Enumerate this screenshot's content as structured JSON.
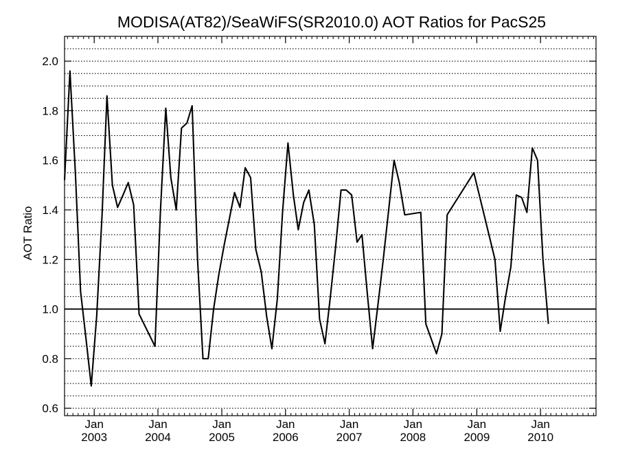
{
  "chart_data": {
    "type": "line",
    "title": "MODISA(AT82)/SeaWiFS(SR2010.0)  AOT Ratios for PacS25",
    "xlabel": "",
    "ylabel": "AOT Ratio",
    "xlim": [
      "2002-07-15",
      "2010-11-15"
    ],
    "ylim": [
      0.57,
      2.1
    ],
    "grid": true,
    "grid_style": "dotted",
    "reference_line": 1.0,
    "y_ticks": [
      0.6,
      0.8,
      1.0,
      1.2,
      1.4,
      1.6,
      1.8,
      2.0
    ],
    "y_tick_labels": [
      "0.6",
      "0.8",
      "1.0",
      "1.2",
      "1.4",
      "1.6",
      "1.8",
      "2.0"
    ],
    "x_ticks": [
      {
        "date": "2003-01-01",
        "month": "Jan",
        "year": "2003"
      },
      {
        "date": "2004-01-01",
        "month": "Jan",
        "year": "2004"
      },
      {
        "date": "2005-01-01",
        "month": "Jan",
        "year": "2005"
      },
      {
        "date": "2006-01-01",
        "month": "Jan",
        "year": "2006"
      },
      {
        "date": "2007-01-01",
        "month": "Jan",
        "year": "2007"
      },
      {
        "date": "2008-01-01",
        "month": "Jan",
        "year": "2008"
      },
      {
        "date": "2009-01-01",
        "month": "Jan",
        "year": "2009"
      },
      {
        "date": "2010-01-01",
        "month": "Jan",
        "year": "2010"
      }
    ],
    "series": [
      {
        "points": [
          [
            "2002-07-15",
            1.52
          ],
          [
            "2002-08-15",
            1.96
          ],
          [
            "2002-09-15",
            1.55
          ],
          [
            "2002-10-15",
            1.07
          ],
          [
            "2002-11-15",
            0.88
          ],
          [
            "2002-12-15",
            0.69
          ],
          [
            "2003-01-15",
            0.97
          ],
          [
            "2003-02-15",
            1.38
          ],
          [
            "2003-03-15",
            1.86
          ],
          [
            "2003-04-15",
            1.5
          ],
          [
            "2003-05-15",
            1.41
          ],
          [
            "2003-06-15",
            1.46
          ],
          [
            "2003-07-15",
            1.51
          ],
          [
            "2003-08-15",
            1.42
          ],
          [
            "2003-09-15",
            0.98
          ],
          [
            "2003-12-15",
            0.85
          ],
          [
            "2004-01-15",
            1.39
          ],
          [
            "2004-02-15",
            1.81
          ],
          [
            "2004-03-15",
            1.53
          ],
          [
            "2004-04-15",
            1.4
          ],
          [
            "2004-05-15",
            1.73
          ],
          [
            "2004-06-15",
            1.75
          ],
          [
            "2004-07-15",
            1.82
          ],
          [
            "2004-08-15",
            1.2
          ],
          [
            "2004-09-15",
            0.8
          ],
          [
            "2004-10-15",
            0.8
          ],
          [
            "2004-11-15",
            1.0
          ],
          [
            "2004-12-15",
            1.14
          ],
          [
            "2005-01-15",
            1.26
          ],
          [
            "2005-02-15",
            1.37
          ],
          [
            "2005-03-15",
            1.47
          ],
          [
            "2005-04-15",
            1.41
          ],
          [
            "2005-05-15",
            1.57
          ],
          [
            "2005-06-15",
            1.53
          ],
          [
            "2005-07-15",
            1.24
          ],
          [
            "2005-08-15",
            1.15
          ],
          [
            "2005-09-15",
            0.97
          ],
          [
            "2005-10-15",
            0.84
          ],
          [
            "2005-11-15",
            1.04
          ],
          [
            "2005-12-15",
            1.39
          ],
          [
            "2006-01-15",
            1.67
          ],
          [
            "2006-02-15",
            1.46
          ],
          [
            "2006-03-15",
            1.32
          ],
          [
            "2006-04-15",
            1.43
          ],
          [
            "2006-05-15",
            1.48
          ],
          [
            "2006-06-15",
            1.34
          ],
          [
            "2006-07-15",
            0.96
          ],
          [
            "2006-08-15",
            0.86
          ],
          [
            "2006-09-15",
            1.05
          ],
          [
            "2006-10-15",
            1.25
          ],
          [
            "2006-11-15",
            1.48
          ],
          [
            "2006-12-15",
            1.48
          ],
          [
            "2007-01-15",
            1.46
          ],
          [
            "2007-02-15",
            1.27
          ],
          [
            "2007-03-15",
            1.3
          ],
          [
            "2007-04-15",
            1.06
          ],
          [
            "2007-05-15",
            0.84
          ],
          [
            "2007-06-15",
            1.02
          ],
          [
            "2007-07-15",
            1.2
          ],
          [
            "2007-08-15",
            1.4
          ],
          [
            "2007-09-15",
            1.6
          ],
          [
            "2007-10-15",
            1.51
          ],
          [
            "2007-11-15",
            1.38
          ],
          [
            "2008-02-15",
            1.39
          ],
          [
            "2008-03-15",
            0.94
          ],
          [
            "2008-05-15",
            0.82
          ],
          [
            "2008-06-15",
            0.9
          ],
          [
            "2008-07-15",
            1.38
          ],
          [
            "2008-12-15",
            1.55
          ],
          [
            "2009-04-15",
            1.2
          ],
          [
            "2009-05-15",
            0.91
          ],
          [
            "2009-06-15",
            1.05
          ],
          [
            "2009-07-15",
            1.17
          ],
          [
            "2009-08-15",
            1.46
          ],
          [
            "2009-09-15",
            1.45
          ],
          [
            "2009-10-15",
            1.39
          ],
          [
            "2009-11-15",
            1.65
          ],
          [
            "2009-12-15",
            1.6
          ],
          [
            "2010-01-15",
            1.2
          ],
          [
            "2010-02-15",
            0.94
          ]
        ]
      }
    ]
  }
}
